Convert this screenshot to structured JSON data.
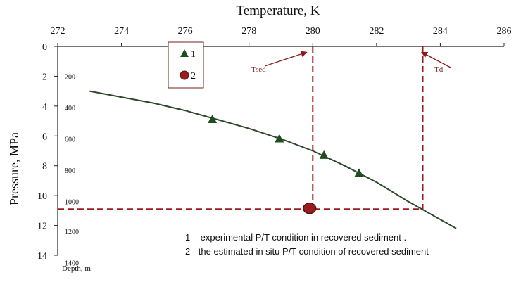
{
  "chart_data": {
    "type": "line",
    "xlabel": "Temperature, K",
    "ylabel": "Pressure, MPa",
    "xlim": [
      272,
      286
    ],
    "ylim": [
      0,
      14
    ],
    "x_ticks": [
      "272",
      "274",
      "276",
      "278",
      "280",
      "282",
      "284",
      "286"
    ],
    "x_tick_values": [
      272,
      274,
      276,
      278,
      280,
      282,
      284,
      286
    ],
    "y_ticks": [
      "0",
      "2",
      "4",
      "6",
      "8",
      "10",
      "12",
      "14"
    ],
    "y_tick_values": [
      0,
      2,
      4,
      6,
      8,
      10,
      12,
      14
    ],
    "x_axis_position": "top",
    "grid": false,
    "depth_axis": {
      "label": "Depth, m",
      "ticks": [
        "200",
        "400",
        "600",
        "800",
        "1000",
        "1200",
        "1400"
      ],
      "pressure_values": [
        2.0,
        4.1,
        6.2,
        8.3,
        10.4,
        12.4,
        14.5
      ]
    },
    "curve": {
      "points": [
        [
          273.0,
          3.0
        ],
        [
          274.0,
          3.4
        ],
        [
          275.0,
          3.8
        ],
        [
          276.0,
          4.3
        ],
        [
          277.0,
          4.9
        ],
        [
          278.0,
          5.5
        ],
        [
          279.0,
          6.2
        ],
        [
          280.0,
          7.0
        ],
        [
          281.0,
          8.0
        ],
        [
          282.0,
          9.1
        ],
        [
          283.0,
          10.4
        ],
        [
          283.5,
          11.0
        ],
        [
          284.0,
          11.6
        ],
        [
          284.5,
          12.2
        ]
      ],
      "color": "#2d4a2d"
    },
    "series": [
      {
        "name": "1",
        "marker": "triangle",
        "color": "#1f4d1f",
        "points": [
          [
            276.85,
            4.9
          ],
          [
            278.95,
            6.2
          ],
          [
            280.35,
            7.3
          ],
          [
            281.45,
            8.5
          ]
        ]
      },
      {
        "name": "2",
        "marker": "circle",
        "color": "#9b1c1c",
        "points": [
          [
            279.9,
            10.85
          ]
        ]
      }
    ],
    "reference_lines": [
      {
        "type": "vertical",
        "x": 280.0,
        "y_from": 0,
        "y_to": 10.9,
        "color": "#9b1c1c"
      },
      {
        "type": "vertical",
        "x": 283.45,
        "y_from": 0,
        "y_to": 11.0,
        "color": "#9b1c1c"
      },
      {
        "type": "horizontal",
        "y": 10.9,
        "x_from": 272,
        "x_to": 283.45,
        "color": "#9b1c1c"
      }
    ],
    "annotations": [
      {
        "text": "Tsed",
        "points_to": [
          279.9,
          0.2
        ]
      },
      {
        "text": "Td",
        "points_to": [
          283.5,
          0.2
        ]
      }
    ],
    "legend": {
      "position": "top-left",
      "entries": [
        "1",
        "2"
      ]
    },
    "notes": [
      "1 – experimental P/T condition in recovered sediment .",
      "2 - the estimated in situ P/T condition  of recovered sediment"
    ]
  }
}
